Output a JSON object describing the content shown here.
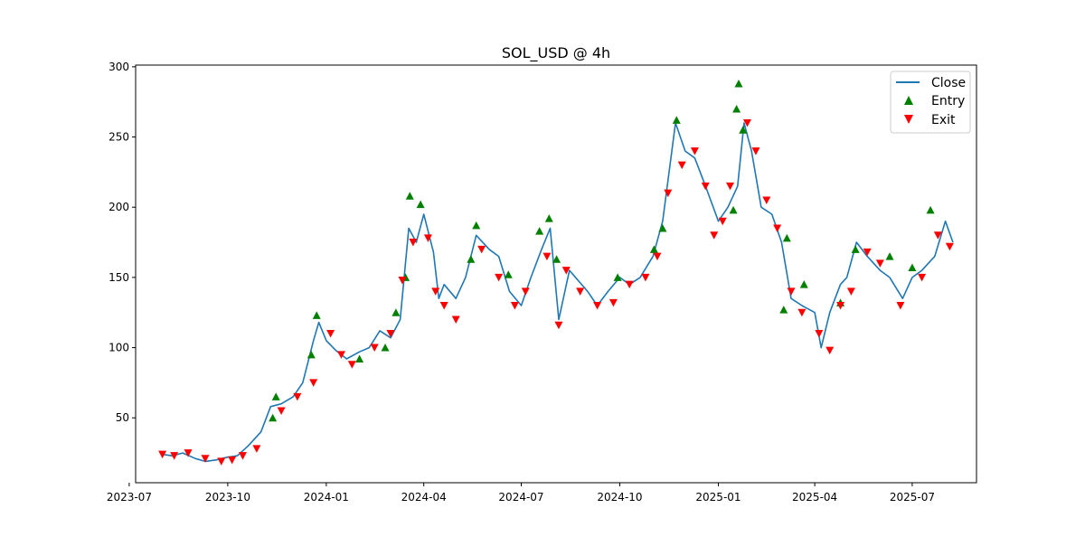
{
  "chart_data": {
    "type": "line",
    "title": "SOL_USD @ 4h",
    "xlabel": "",
    "ylabel": "",
    "x_type": "date",
    "xlim": [
      "2023-07-07",
      "2025-08-30"
    ],
    "ylim": [
      3.8,
      301.2
    ],
    "x_ticks": [
      "2023-07",
      "2023-10",
      "2024-01",
      "2024-04",
      "2024-07",
      "2024-10",
      "2025-01",
      "2025-04",
      "2025-07"
    ],
    "x_tick_dates": [
      "2023-07-01",
      "2023-10-01",
      "2024-01-01",
      "2024-04-01",
      "2024-07-01",
      "2024-10-01",
      "2025-01-01",
      "2025-04-01",
      "2025-07-01"
    ],
    "y_ticks": [
      50,
      100,
      150,
      200,
      250,
      300
    ],
    "grid": false,
    "legend": {
      "position": "top-right",
      "entries": [
        "Close",
        "Entry",
        "Exit"
      ]
    },
    "colors": {
      "close": "#1f77b4",
      "entry": "#008000",
      "exit": "#ff0000"
    },
    "series": [
      {
        "name": "Close",
        "kind": "line",
        "x": [
          "2023-08-01",
          "2023-08-10",
          "2023-08-20",
          "2023-09-01",
          "2023-09-10",
          "2023-09-20",
          "2023-10-01",
          "2023-10-10",
          "2023-10-20",
          "2023-11-01",
          "2023-11-10",
          "2023-11-20",
          "2023-12-01",
          "2023-12-10",
          "2023-12-20",
          "2023-12-25",
          "2024-01-01",
          "2024-01-10",
          "2024-01-20",
          "2024-02-01",
          "2024-02-10",
          "2024-02-20",
          "2024-03-01",
          "2024-03-10",
          "2024-03-18",
          "2024-03-25",
          "2024-04-01",
          "2024-04-10",
          "2024-04-15",
          "2024-04-20",
          "2024-05-01",
          "2024-05-10",
          "2024-05-20",
          "2024-06-01",
          "2024-06-10",
          "2024-06-20",
          "2024-07-01",
          "2024-07-10",
          "2024-07-20",
          "2024-07-28",
          "2024-08-05",
          "2024-08-15",
          "2024-09-01",
          "2024-09-10",
          "2024-09-20",
          "2024-10-01",
          "2024-10-10",
          "2024-10-20",
          "2024-11-01",
          "2024-11-10",
          "2024-11-22",
          "2024-12-01",
          "2024-12-10",
          "2024-12-20",
          "2025-01-01",
          "2025-01-10",
          "2025-01-19",
          "2025-01-25",
          "2025-02-01",
          "2025-02-10",
          "2025-02-20",
          "2025-03-01",
          "2025-03-10",
          "2025-03-20",
          "2025-04-01",
          "2025-04-07",
          "2025-04-15",
          "2025-04-25",
          "2025-05-01",
          "2025-05-10",
          "2025-05-20",
          "2025-06-01",
          "2025-06-10",
          "2025-06-22",
          "2025-07-01",
          "2025-07-10",
          "2025-07-22",
          "2025-08-01",
          "2025-08-08"
        ],
        "y": [
          24,
          23,
          25,
          21,
          19,
          20,
          22,
          23,
          30,
          40,
          58,
          60,
          65,
          75,
          105,
          118,
          105,
          98,
          92,
          97,
          100,
          112,
          107,
          120,
          185,
          175,
          195,
          168,
          135,
          145,
          135,
          150,
          180,
          170,
          165,
          140,
          130,
          150,
          170,
          185,
          120,
          155,
          140,
          130,
          140,
          150,
          145,
          150,
          165,
          190,
          260,
          240,
          235,
          215,
          190,
          200,
          215,
          260,
          240,
          200,
          195,
          175,
          135,
          130,
          125,
          100,
          125,
          145,
          150,
          175,
          165,
          155,
          150,
          135,
          150,
          155,
          165,
          190,
          175
        ]
      },
      {
        "name": "Entry",
        "kind": "scatter",
        "marker": "triangle-up",
        "x": [
          "2023-11-12",
          "2023-11-15",
          "2023-12-18",
          "2023-12-23",
          "2024-02-01",
          "2024-02-25",
          "2024-03-06",
          "2024-03-15",
          "2024-03-19",
          "2024-03-29",
          "2024-05-15",
          "2024-05-20",
          "2024-06-19",
          "2024-07-18",
          "2024-07-27",
          "2024-08-03",
          "2024-09-29",
          "2024-11-02",
          "2024-11-10",
          "2024-11-23",
          "2025-01-15",
          "2025-01-18",
          "2025-01-20",
          "2025-01-24",
          "2025-03-03",
          "2025-03-06",
          "2025-03-22",
          "2025-04-25",
          "2025-05-09",
          "2025-06-10",
          "2025-07-01",
          "2025-07-18"
        ],
        "y": [
          50,
          65,
          95,
          123,
          92,
          100,
          125,
          150,
          208,
          202,
          163,
          187,
          152,
          183,
          192,
          163,
          150,
          170,
          185,
          262,
          198,
          270,
          288,
          255,
          127,
          178,
          145,
          132,
          170,
          165,
          157,
          198
        ]
      },
      {
        "name": "Exit",
        "kind": "scatter",
        "marker": "triangle-down",
        "x": [
          "2023-08-01",
          "2023-08-12",
          "2023-08-25",
          "2023-09-10",
          "2023-09-25",
          "2023-10-05",
          "2023-10-15",
          "2023-10-28",
          "2023-11-20",
          "2023-12-05",
          "2023-12-20",
          "2024-01-05",
          "2024-01-15",
          "2024-01-25",
          "2024-02-15",
          "2024-03-01",
          "2024-03-12",
          "2024-03-22",
          "2024-04-05",
          "2024-04-12",
          "2024-04-20",
          "2024-05-01",
          "2024-05-25",
          "2024-06-10",
          "2024-06-25",
          "2024-07-05",
          "2024-07-25",
          "2024-08-05",
          "2024-08-12",
          "2024-08-25",
          "2024-09-10",
          "2024-09-25",
          "2024-10-10",
          "2024-10-25",
          "2024-11-05",
          "2024-11-15",
          "2024-11-28",
          "2024-12-10",
          "2024-12-20",
          "2024-12-28",
          "2025-01-05",
          "2025-01-12",
          "2025-01-28",
          "2025-02-05",
          "2025-02-15",
          "2025-02-25",
          "2025-03-10",
          "2025-03-20",
          "2025-04-05",
          "2025-04-15",
          "2025-04-25",
          "2025-05-05",
          "2025-05-20",
          "2025-06-01",
          "2025-06-20",
          "2025-07-10",
          "2025-07-25",
          "2025-08-05"
        ],
        "y": [
          24,
          23,
          25,
          21,
          19,
          20,
          23,
          28,
          55,
          65,
          75,
          110,
          95,
          88,
          100,
          110,
          148,
          175,
          178,
          140,
          130,
          120,
          170,
          150,
          130,
          140,
          165,
          116,
          155,
          140,
          130,
          132,
          145,
          150,
          165,
          210,
          230,
          240,
          215,
          180,
          190,
          215,
          260,
          240,
          205,
          185,
          140,
          125,
          110,
          98,
          130,
          140,
          168,
          160,
          130,
          150,
          180,
          172
        ]
      }
    ]
  }
}
